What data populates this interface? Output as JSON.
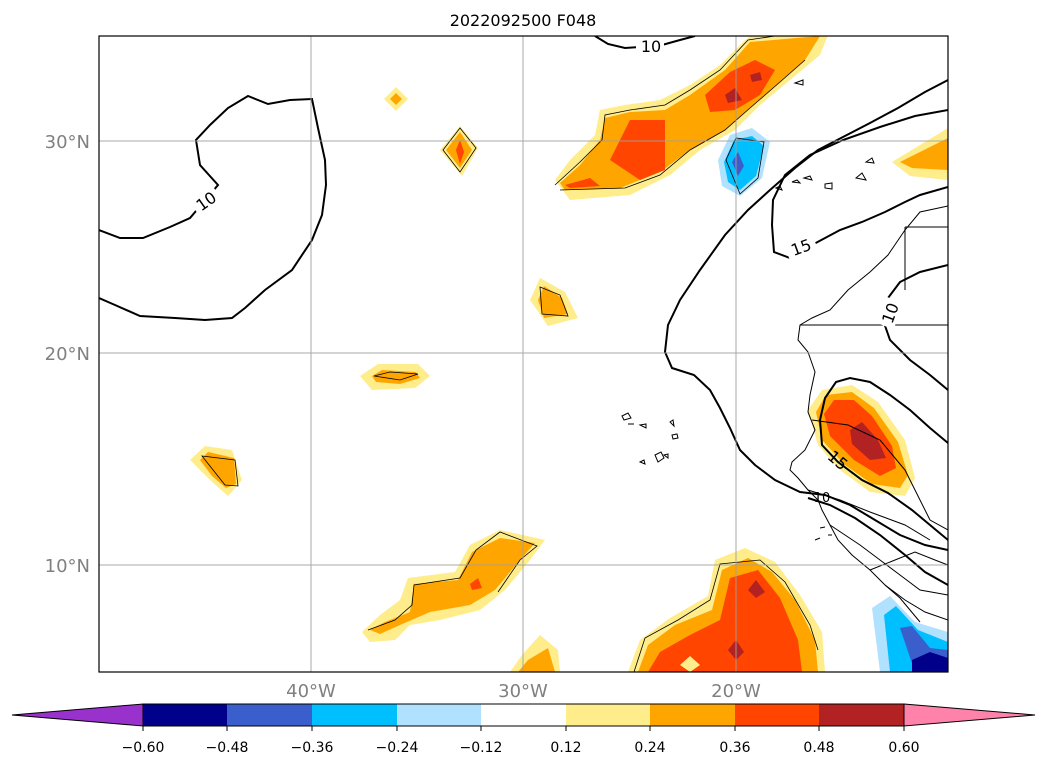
{
  "title": "2022092500 F048",
  "map": {
    "lat_ticks": [
      "30°N",
      "20°N",
      "10°N"
    ],
    "lon_ticks": [
      "40°W",
      "30°W",
      "20°W"
    ],
    "gridlines": true
  },
  "contour_labels": [
    "10",
    "10",
    "15",
    "10",
    "15",
    "10"
  ],
  "colorbar": {
    "ticks": [
      "−0.60",
      "−0.48",
      "−0.36",
      "−0.24",
      "−0.12",
      "0.12",
      "0.24",
      "0.36",
      "0.48",
      "0.60"
    ],
    "colors": [
      "#9932cc",
      "#00008b",
      "#3a5fcd",
      "#00bfff",
      "#b0e2ff",
      "#ffffff",
      "#ffec8b",
      "#ffa500",
      "#ff4500",
      "#b22222",
      "#ff82ab"
    ],
    "extend": "both"
  }
}
